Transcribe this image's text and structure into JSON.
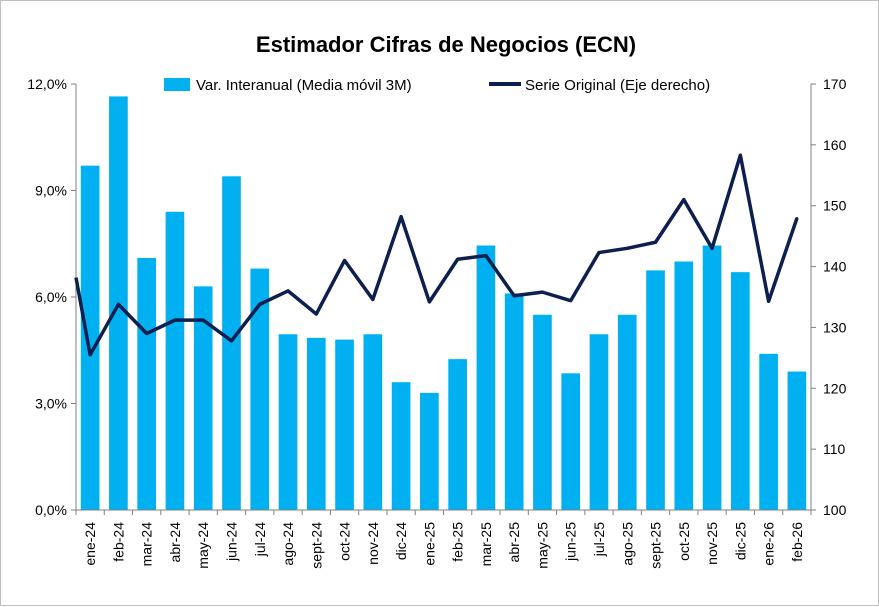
{
  "chart_data": {
    "type": "bar+line",
    "title": "Estimador Cifras de Negocios (ECN)",
    "categories": [
      "ene-24",
      "feb-24",
      "mar-24",
      "abr-24",
      "may-24",
      "jun-24",
      "jul-24",
      "ago-24",
      "sept-24",
      "oct-24",
      "nov-24",
      "dic-24",
      "ene-25",
      "feb-25",
      "mar-25",
      "abr-25",
      "may-25",
      "jun-25",
      "jul-25",
      "ago-25",
      "sept-25",
      "oct-25",
      "nov-25",
      "dic-25",
      "ene-26",
      "feb-26"
    ],
    "series": [
      {
        "name": "Var. Interanual (Media móvil 3M)",
        "type": "bar",
        "axis": "left",
        "color": "#00b0f0",
        "values": [
          9.7,
          11.65,
          7.1,
          8.4,
          6.3,
          9.4,
          6.8,
          4.95,
          4.85,
          4.8,
          4.95,
          3.6,
          3.3,
          4.25,
          7.45,
          6.1,
          5.5,
          3.85,
          4.95,
          5.5,
          6.75,
          7.0,
          7.45,
          6.7,
          4.4,
          3.9
        ]
      },
      {
        "name": "Serie Original (Eje derecho)",
        "type": "line",
        "axis": "right",
        "color": "#0d1f4f",
        "values": [
          125.5,
          133.8,
          129.0,
          131.2,
          131.2,
          127.8,
          133.8,
          136.0,
          132.2,
          141.0,
          134.6,
          148.2,
          134.2,
          141.2,
          141.8,
          135.2,
          135.8,
          134.4,
          142.3,
          143.0,
          144.0,
          151.0,
          143.0,
          158.3,
          134.3,
          147.9
        ],
        "start_value": 138.2
      }
    ],
    "y_left": {
      "min": 0,
      "max": 12,
      "ticks": [
        "0,0%",
        "3,0%",
        "6,0%",
        "9,0%",
        "12,0%"
      ],
      "tick_values": [
        0,
        3,
        6,
        9,
        12
      ]
    },
    "y_right": {
      "min": 100,
      "max": 170,
      "ticks": [
        "100",
        "110",
        "120",
        "130",
        "140",
        "150",
        "160",
        "170"
      ],
      "tick_values": [
        100,
        110,
        120,
        130,
        140,
        150,
        160,
        170
      ]
    },
    "legend_position": "top",
    "grid": false
  }
}
